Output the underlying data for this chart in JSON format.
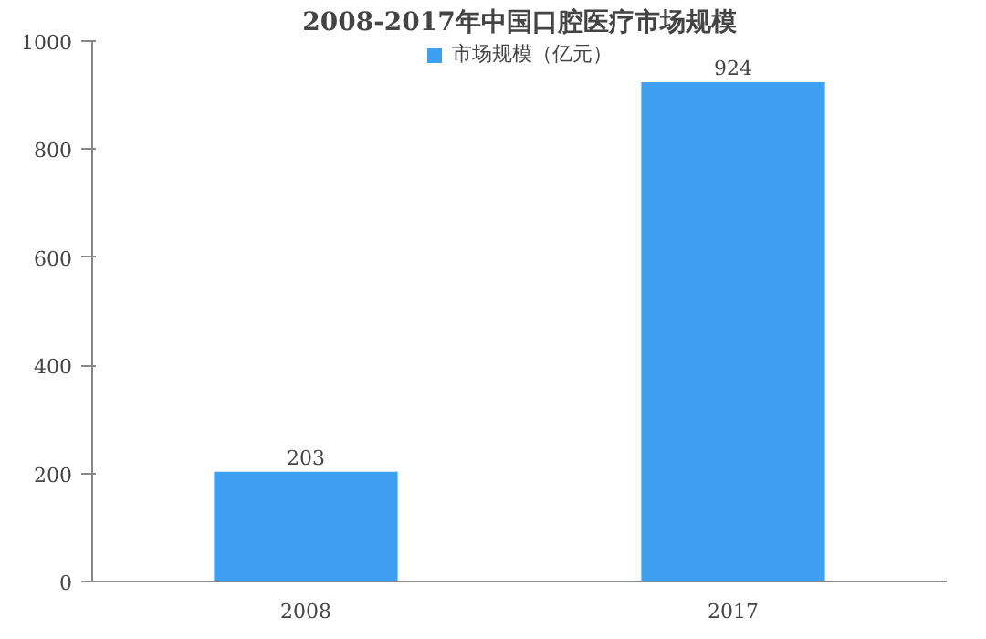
{
  "chart_data": {
    "type": "bar",
    "title": "2008-2017年中国口腔医疗市场规模",
    "categories": [
      "2008",
      "2017"
    ],
    "series": [
      {
        "name": "市场规模（亿元）",
        "color": "#3f9ff0",
        "values": [
          203,
          924
        ]
      }
    ],
    "ylim": [
      0,
      1000
    ],
    "yticks": [
      0,
      200,
      400,
      600,
      800,
      1000
    ],
    "data_labels": true,
    "legend": "top",
    "grid": false
  }
}
